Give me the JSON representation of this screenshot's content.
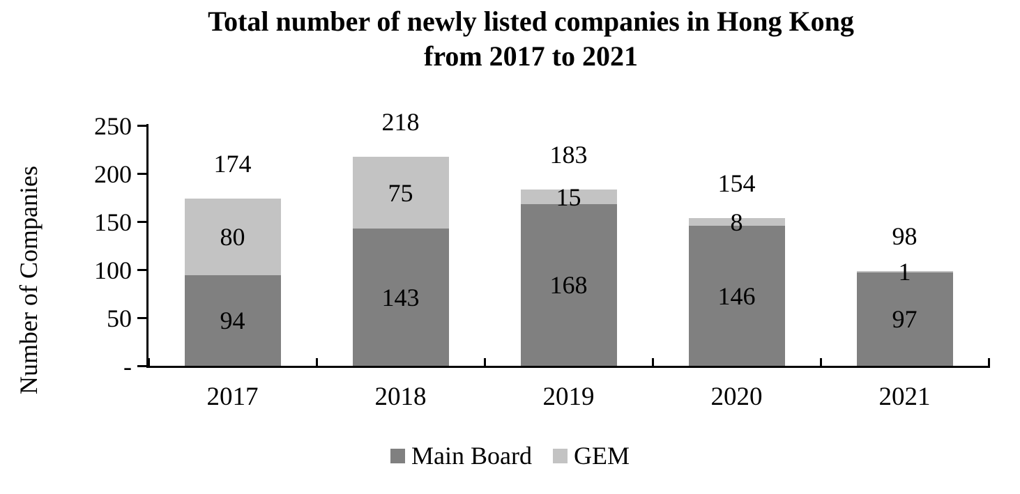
{
  "chart_data": {
    "type": "bar",
    "stacked": true,
    "title": "Total number of newly listed companies in Hong Kong from 2017 to 2021",
    "title_lines": [
      "Total number of newly listed companies in Hong Kong",
      "from 2017 to 2021"
    ],
    "ylabel": "Number of Companies",
    "xlabel": "",
    "categories": [
      "2017",
      "2018",
      "2019",
      "2020",
      "2021"
    ],
    "series": [
      {
        "name": "Main Board",
        "color": "#808080",
        "values": [
          94,
          143,
          168,
          146,
          97
        ]
      },
      {
        "name": "GEM",
        "color": "#C3C3C3",
        "values": [
          80,
          75,
          15,
          8,
          1
        ]
      }
    ],
    "totals": [
      174,
      218,
      183,
      154,
      98
    ],
    "ylim": [
      0,
      250
    ],
    "ytick_step": 50,
    "ytick_labels": [
      "-",
      "50",
      "100",
      "150",
      "200",
      "250"
    ],
    "grid": false,
    "legend_position": "bottom"
  },
  "colors": {
    "axis": "#000000",
    "text": "#000000",
    "background": "#FFFFFF"
  }
}
